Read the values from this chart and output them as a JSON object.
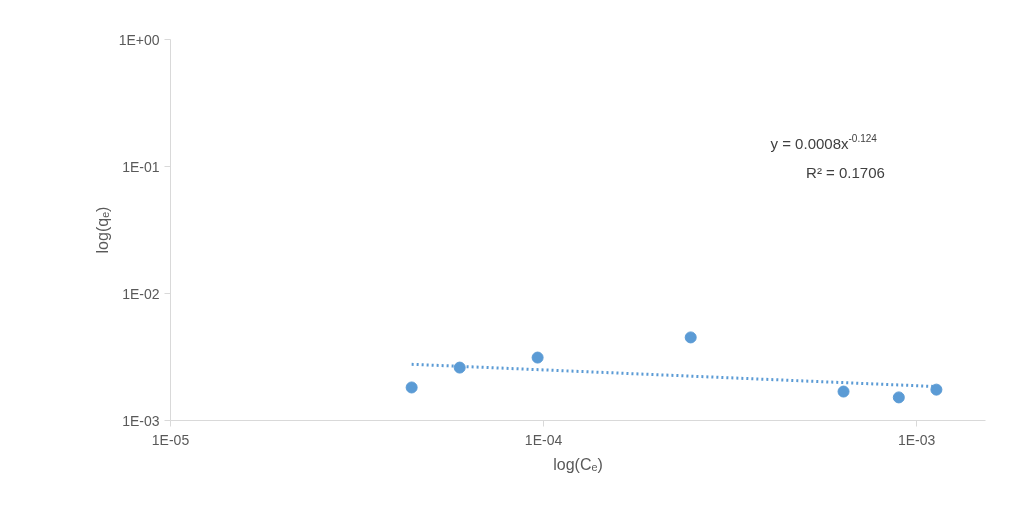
{
  "chart_data": {
    "type": "scatter",
    "xlabel": "log(Cₑ)",
    "ylabel": "log(qₑ)",
    "log": "xy",
    "grid": false,
    "marker": "circle",
    "xlim": [
      1e-05,
      0.00153
    ],
    "ylim": [
      0.001,
      1
    ],
    "xticks": [
      {
        "value": 1e-05,
        "label": "1E-05"
      },
      {
        "value": 0.0001,
        "label": "1E-04"
      },
      {
        "value": 0.001,
        "label": "1E-03"
      }
    ],
    "yticks": [
      {
        "value": 0.001,
        "label": "1E-03"
      },
      {
        "value": 0.01,
        "label": "1E-02"
      },
      {
        "value": 0.1,
        "label": "1E-01"
      },
      {
        "value": 1,
        "label": "1E+00"
      }
    ],
    "series": [
      {
        "color": "#5b9bd5",
        "x": [
          4.43e-05,
          5.96e-05,
          9.64e-05,
          0.000248,
          0.000637,
          0.000896,
          0.00113
        ],
        "values": [
          0.00182,
          0.00261,
          0.00313,
          0.00451,
          0.00169,
          0.00152,
          0.00175
        ]
      },
      {
        "type": "line",
        "line_style": "dotted",
        "marker": "none",
        "color": "#5b9bd5",
        "x": [
          4.43e-05,
          0.00113
        ],
        "values": [
          0.00277,
          0.00185
        ]
      }
    ],
    "annotations": [
      "y = 0.0008x$^{-0.124}$",
      "R² = 0.1706"
    ]
  }
}
